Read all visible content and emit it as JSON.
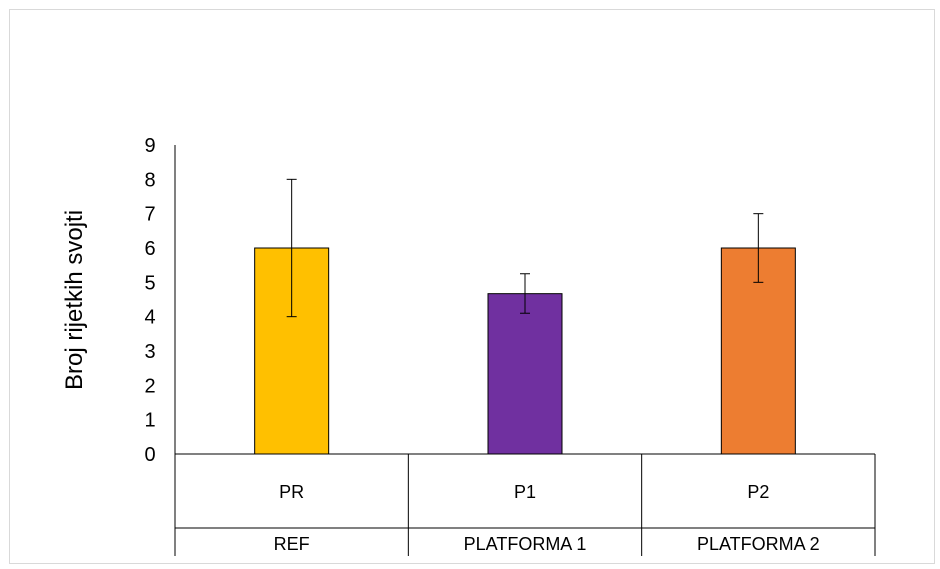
{
  "chart_data": {
    "type": "bar",
    "title": "",
    "xlabel": "",
    "ylabel": "Broj rijetkih svojti",
    "ylim": [
      0,
      9
    ],
    "yticks": [
      0,
      1,
      2,
      3,
      4,
      5,
      6,
      7,
      8,
      9
    ],
    "grid": false,
    "legend": "none",
    "categories": [
      "PR",
      "P1",
      "P2"
    ],
    "groups": [
      "REF",
      "PLATFORMA 1",
      "PLATFORMA 2"
    ],
    "values": [
      6,
      4.67,
      6
    ],
    "error_low": [
      4,
      4.1,
      5
    ],
    "error_high": [
      8,
      5.25,
      7
    ],
    "colors": [
      "#FFC000",
      "#7030A0",
      "#ED7D31"
    ]
  }
}
